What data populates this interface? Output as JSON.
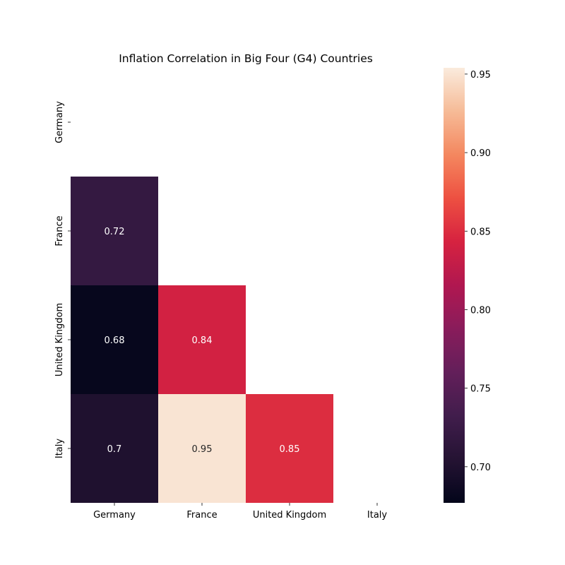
{
  "chart_data": {
    "type": "heatmap",
    "title": "Inflation Correlation in Big Four (G4) Countries",
    "xlabel": "",
    "ylabel": "",
    "x_categories": [
      "Germany",
      "France",
      "United Kingdom",
      "Italy"
    ],
    "y_categories": [
      "Germany",
      "France",
      "United Kingdom",
      "Italy"
    ],
    "mask": "upper triangle including diagonal",
    "cells": [
      {
        "row": "France",
        "col": "Germany",
        "value": 0.72,
        "label": "0.72"
      },
      {
        "row": "United Kingdom",
        "col": "Germany",
        "value": 0.68,
        "label": "0.68"
      },
      {
        "row": "United Kingdom",
        "col": "France",
        "value": 0.84,
        "label": "0.84"
      },
      {
        "row": "Italy",
        "col": "Germany",
        "value": 0.7,
        "label": "0.7"
      },
      {
        "row": "Italy",
        "col": "France",
        "value": 0.95,
        "label": "0.95"
      },
      {
        "row": "Italy",
        "col": "United Kingdom",
        "value": 0.85,
        "label": "0.85"
      }
    ],
    "colormap": "rocket",
    "color_range": [
      0.677,
      0.954
    ],
    "colorbar_ticks": [
      "0.70",
      "0.75",
      "0.80",
      "0.85",
      "0.90",
      "0.95"
    ],
    "colorbar_tick_values": [
      0.7,
      0.75,
      0.8,
      0.85,
      0.9,
      0.95
    ],
    "colorbar_position": "right",
    "grid": false
  }
}
